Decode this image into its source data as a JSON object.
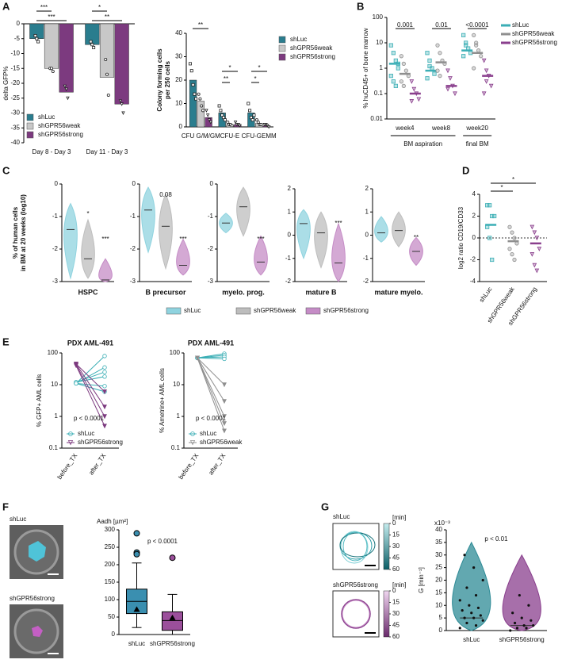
{
  "panel_labels": [
    "A",
    "B",
    "C",
    "D",
    "E",
    "F",
    "G"
  ],
  "images": {
    "F": {
      "labels": [
        "shLuc",
        "shGPR56strong"
      ]
    },
    "G": {
      "labels": [
        "shLuc",
        "shGPR56strong"
      ],
      "colorbar_label": "[min]",
      "colorbar_ticks": [
        0,
        15,
        30,
        45,
        60
      ]
    }
  },
  "chart_data": [
    {
      "type": "bar",
      "ylabel": "delta GFP%",
      "categories": [
        "Day 8 - Day 3",
        "Day 11 - Day 3"
      ],
      "series": [
        {
          "name": "shLuc",
          "color": "#2a7d8e",
          "values": [
            -5,
            -7
          ],
          "points": [
            [
              -4,
              -5,
              -6
            ],
            [
              -6,
              -7,
              -8
            ]
          ]
        },
        {
          "name": "shGPR56weak",
          "color": "#c8c8c8",
          "values": [
            -15,
            -18
          ],
          "points": [
            [
              -15,
              -15,
              -16
            ],
            [
              -12,
              -17,
              -24
            ]
          ]
        },
        {
          "name": "shGPR56strong",
          "color": "#7c3a7f",
          "values": [
            -23,
            -27
          ],
          "points": [
            [
              -21,
              -22,
              -25
            ],
            [
              -26,
              -27,
              -30
            ]
          ]
        }
      ],
      "ylim": [
        -40,
        0
      ],
      "yticks": [
        -40,
        -35,
        -30,
        -25,
        -20,
        -15,
        -10,
        -5,
        0
      ],
      "annotations": [
        "***",
        "***",
        "*",
        "**"
      ],
      "legend": "lower left"
    },
    {
      "type": "bar",
      "ylabel": [
        "Colony forming cells",
        "per 250 cells"
      ],
      "categories": [
        "CFU G/M/GM",
        "CFU-E",
        "CFU-GEMM"
      ],
      "series": [
        {
          "name": "shLuc",
          "color": "#2a7d8e",
          "values": [
            20,
            6,
            6
          ],
          "points": [
            [
              27,
              24,
              18,
              14,
              12
            ],
            [
              9,
              7,
              5,
              4,
              3
            ],
            [
              10,
              7,
              4,
              3,
              5
            ]
          ]
        },
        {
          "name": "shGPR56weak",
          "color": "#c8c8c8",
          "values": [
            11,
            1,
            1.5
          ],
          "points": [
            [
              14,
              12,
              9,
              7
            ],
            [
              2,
              1,
              1,
              0.5
            ],
            [
              3,
              2,
              1,
              1
            ]
          ]
        },
        {
          "name": "shGPR56strong",
          "color": "#7c3a7f",
          "values": [
            4,
            1,
            0.5
          ],
          "points": [
            [
              7,
              5,
              3,
              2
            ],
            [
              2,
              1,
              1,
              0.5
            ],
            [
              1,
              1,
              0.5,
              0
            ]
          ]
        }
      ],
      "ylim": [
        0,
        40
      ],
      "yticks": [
        0,
        10,
        20,
        30,
        40
      ],
      "annotations": [
        "**",
        "**",
        "*",
        "*",
        "*"
      ],
      "legend": "right"
    },
    {
      "type": "dot",
      "ylabel": "% huCD45+ of bone marrow",
      "log": true,
      "categories": [
        "week4",
        "week8",
        "week20"
      ],
      "group_labels": [
        "BM aspiration",
        "final BM"
      ],
      "series": [
        {
          "name": "shLuc",
          "color": "#3aaeb5",
          "values": [
            1.5,
            0.8,
            5
          ],
          "points": [
            [
              8,
              4,
              2,
              1,
              0.5,
              0.3,
              0.2,
              1.5
            ],
            [
              4,
              2,
              1,
              0.6,
              0.4,
              1.2
            ],
            [
              20,
              10,
              6,
              4,
              3,
              8
            ]
          ]
        },
        {
          "name": "shGPR56weak",
          "color": "#8f8f8f",
          "values": [
            0.6,
            1.7,
            4
          ],
          "points": [
            [
              3,
              1.5,
              0.8,
              0.5,
              0.3,
              0.2
            ],
            [
              8,
              4,
              2,
              1.5,
              0.8,
              0.5
            ],
            [
              20,
              10,
              5,
              3,
              1,
              8
            ]
          ]
        },
        {
          "name": "shGPR56strong",
          "color": "#8a3f8d",
          "values": [
            0.1,
            0.2,
            0.5
          ],
          "points": [
            [
              0.3,
              0.15,
              0.1,
              0.06,
              0.05
            ],
            [
              0.8,
              0.4,
              0.2,
              0.1,
              0.15
            ],
            [
              2,
              0.8,
              0.5,
              0.2,
              0.1,
              0.3
            ]
          ]
        }
      ],
      "ylim": [
        0.01,
        100
      ],
      "yticks": [
        0.01,
        0.1,
        1,
        10,
        100
      ],
      "annotations": [
        "0.001",
        "0.01",
        "<0.0001"
      ],
      "legend": "right"
    },
    {
      "type": "violin",
      "ylabel": [
        "% of human cells",
        "in BM at 20 weeks (log10)"
      ],
      "xlabel": "HSPC",
      "series": [
        {
          "name": "shLuc",
          "color": "#8fd3df",
          "min": -2.9,
          "median": -1.4,
          "max": -0.6
        },
        {
          "name": "shGPR56weak",
          "color": "#bdbdbd",
          "min": -2.9,
          "median": -2.3,
          "max": -1.1
        },
        {
          "name": "shGPR56strong",
          "color": "#c58cc6",
          "min": -3,
          "median": -2.95,
          "max": -2.3
        }
      ],
      "ylim": [
        -3,
        0
      ],
      "yticks": [
        -3,
        -2,
        -1,
        0
      ],
      "annotations": [
        "*",
        "***"
      ],
      "legend": "bottom"
    },
    {
      "type": "violin",
      "xlabel": "B precursor",
      "series": [
        {
          "color": "#8fd3df",
          "min": -2.1,
          "median": -0.8,
          "max": -0.1
        },
        {
          "color": "#bdbdbd",
          "min": -2.6,
          "median": -1.3,
          "max": -0.3
        },
        {
          "color": "#c58cc6",
          "min": -2.8,
          "median": -2.5,
          "max": -1.7
        }
      ],
      "ylim": [
        -3,
        0
      ],
      "yticks": [
        -3,
        -2,
        -1,
        0
      ],
      "annotations": [
        "0.08",
        "***"
      ]
    },
    {
      "type": "violin",
      "xlabel": "myelo. prog.",
      "series": [
        {
          "color": "#8fd3df",
          "min": -1.5,
          "median": -1.2,
          "max": -0.9
        },
        {
          "color": "#bdbdbd",
          "min": -1.6,
          "median": -0.7,
          "max": -0.1
        },
        {
          "color": "#c58cc6",
          "min": -2.8,
          "median": -2.4,
          "max": -1.6
        }
      ],
      "ylim": [
        -3,
        0
      ],
      "yticks": [
        -3,
        -2,
        -1,
        0
      ],
      "annotations": [
        "***"
      ]
    },
    {
      "type": "violin",
      "xlabel": "mature B",
      "series": [
        {
          "color": "#8fd3df",
          "min": -1,
          "median": 0.5,
          "max": 1.1
        },
        {
          "color": "#bdbdbd",
          "min": -1.4,
          "median": 0.1,
          "max": 1
        },
        {
          "color": "#c58cc6",
          "min": -2,
          "median": -1.2,
          "max": 0.5
        }
      ],
      "ylim": [
        -2,
        2
      ],
      "yticks": [
        -2,
        -1,
        0,
        1,
        2
      ],
      "annotations": [
        "***"
      ]
    },
    {
      "type": "violin",
      "xlabel": "mature myelo.",
      "series": [
        {
          "color": "#8fd3df",
          "min": -0.3,
          "median": 0.1,
          "max": 0.8
        },
        {
          "color": "#bdbdbd",
          "min": -0.5,
          "median": 0.2,
          "max": 1
        },
        {
          "color": "#c58cc6",
          "min": -1.3,
          "median": -0.7,
          "max": -0.1
        }
      ],
      "ylim": [
        -2,
        2
      ],
      "yticks": [
        -2,
        -1,
        0,
        1,
        2
      ],
      "annotations": [
        "**"
      ]
    },
    {
      "type": "dot",
      "ylabel": "log2 ratio CD19/CD33",
      "categories": [
        "shLuc",
        "shGPR56weak",
        "shGPR56strong"
      ],
      "colors": [
        "#3aaeb5",
        "#8f8f8f",
        "#8a3f8d"
      ],
      "values": [
        1.2,
        -0.3,
        -0.5
      ],
      "points": [
        [
          3,
          3,
          2,
          2,
          1,
          0,
          -2
        ],
        [
          1,
          0.5,
          0,
          -0.5,
          -1,
          -1.5,
          -2
        ],
        [
          1,
          0.5,
          0,
          -1,
          -1.5,
          -2.5,
          -3
        ]
      ],
      "ylim": [
        -4,
        4
      ],
      "yticks": [
        -4,
        -2,
        0,
        2,
        4
      ],
      "annotations": [
        "*",
        "*"
      ]
    },
    {
      "type": "line",
      "title": "PDX AML-491",
      "ylabel": "% GFP+ AML cells",
      "log": true,
      "categories": [
        "before_TX",
        "after_TX"
      ],
      "series": [
        {
          "name": "shLuc",
          "color": "#3aaeb5",
          "lines": [
            [
              11,
              80
            ],
            [
              11,
              35
            ],
            [
              12,
              25
            ],
            [
              12,
              18
            ],
            [
              11,
              9
            ],
            [
              11,
              6
            ]
          ]
        },
        {
          "name": "shGPR56strong",
          "color": "#7c3a7f",
          "lines": [
            [
              45,
              6
            ],
            [
              45,
              2
            ],
            [
              42,
              1
            ],
            [
              40,
              0.5
            ]
          ]
        }
      ],
      "ylim": [
        0.1,
        100
      ],
      "yticks": [
        0.1,
        1,
        10,
        100
      ],
      "annotations": [
        "p < 0.0001"
      ],
      "legend": "lower left"
    },
    {
      "type": "line",
      "title": "PDX AML-491",
      "ylabel": "% Ametrine+ AML cells",
      "log": true,
      "categories": [
        "before_TX",
        "after_TX"
      ],
      "series": [
        {
          "name": "shLuc",
          "color": "#3aaeb5",
          "lines": [
            [
              70,
              95
            ],
            [
              70,
              85
            ],
            [
              70,
              75
            ],
            [
              70,
              65
            ]
          ]
        },
        {
          "name": "shGPR56weak",
          "color": "#8f8f8f",
          "lines": [
            [
              70,
              10
            ],
            [
              70,
              3
            ],
            [
              70,
              1
            ],
            [
              70,
              0.6
            ],
            [
              70,
              0.35
            ]
          ]
        }
      ],
      "ylim": [
        0.1,
        100
      ],
      "yticks": [
        0.1,
        1,
        10,
        100
      ],
      "annotations": [
        "p < 0.0001"
      ],
      "legend": "lower left"
    },
    {
      "type": "box",
      "ylabel": "Aadh [µm²]",
      "categories": [
        "shLuc",
        "shGPR56strong"
      ],
      "colors": [
        "#3a8fb0",
        "#9b4f9b"
      ],
      "boxes": [
        {
          "whislo": 20,
          "q1": 60,
          "med": 95,
          "q3": 130,
          "whishi": 205,
          "mean": 72,
          "fliers": [
            235,
            230,
            290
          ]
        },
        {
          "whislo": 0,
          "q1": 12,
          "med": 40,
          "q3": 65,
          "whishi": 115,
          "mean": 48,
          "fliers": [
            220
          ]
        }
      ],
      "ylim": [
        0,
        300
      ],
      "yticks": [
        0,
        50,
        100,
        150,
        200,
        250,
        300
      ],
      "annotations": [
        "p < 0.0001"
      ]
    },
    {
      "type": "violin",
      "ylabel": "G [min⁻¹]",
      "multiplier": "x10⁻³",
      "series": [
        {
          "name": "shLuc",
          "color": "#2e8b96",
          "min": 0,
          "median": 5,
          "max": 35,
          "points": [
            1,
            2,
            3,
            4,
            5,
            5,
            6,
            7,
            8,
            9,
            10,
            12,
            14,
            17,
            20,
            25,
            30
          ]
        },
        {
          "name": "shGPR56strong",
          "color": "#8a3f8d",
          "min": 0,
          "median": 2,
          "max": 30,
          "points": [
            0,
            1,
            1,
            2,
            2,
            3,
            4,
            5,
            7,
            10,
            14
          ]
        }
      ],
      "ylim": [
        0,
        40
      ],
      "yticks": [
        0,
        5,
        10,
        15,
        20,
        25,
        30,
        35,
        40
      ],
      "annotations": [
        "p < 0.01"
      ]
    }
  ]
}
